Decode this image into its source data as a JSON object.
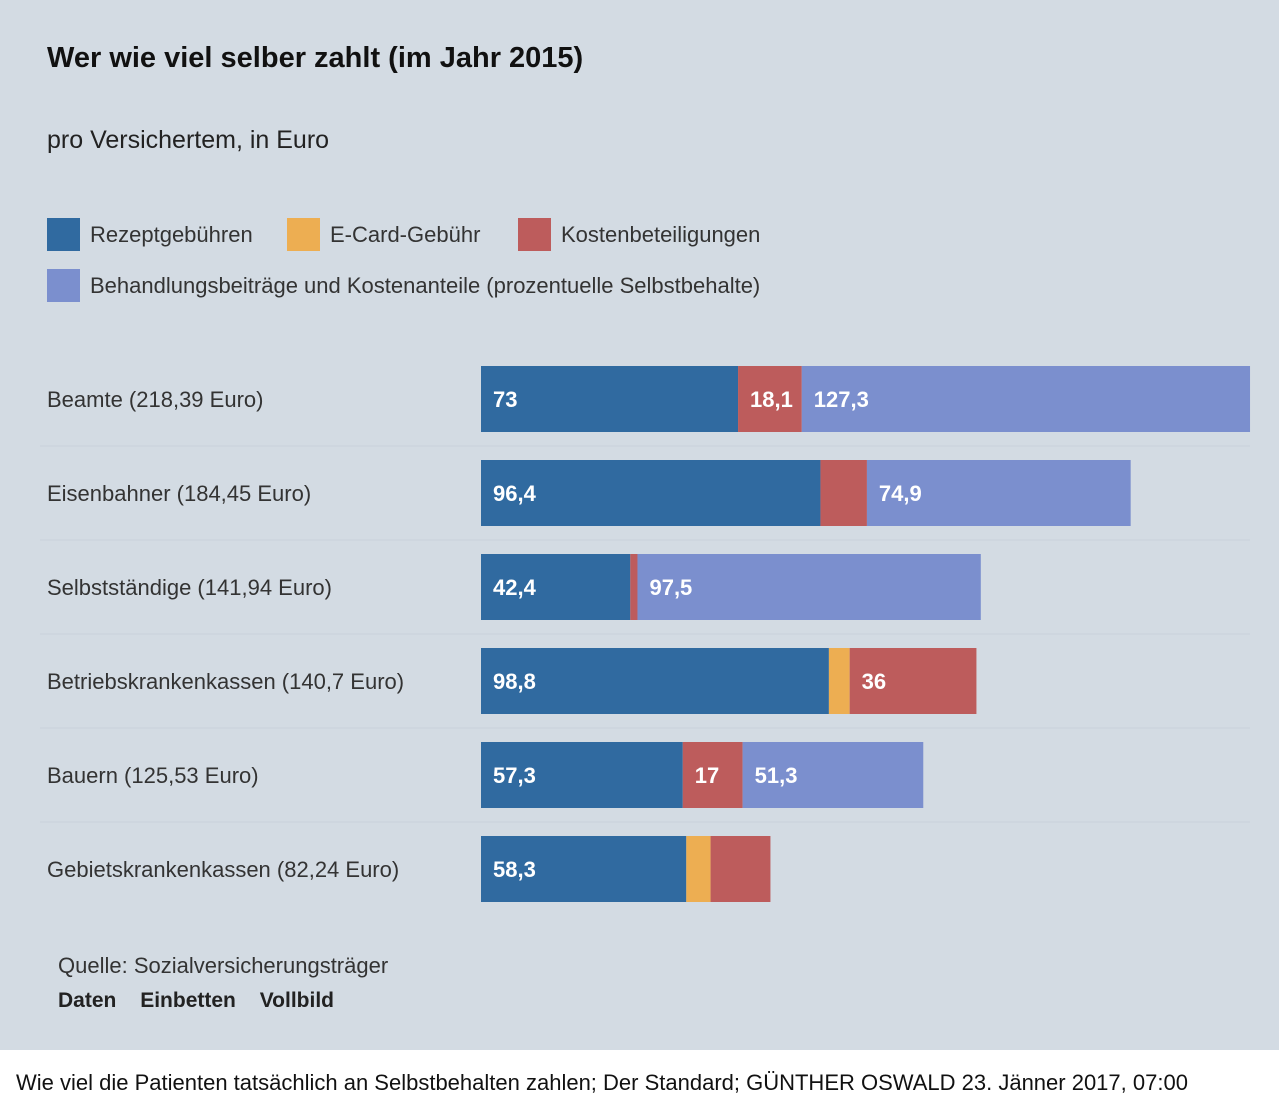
{
  "header": {
    "title": "Wer wie viel selber zahlt (im Jahr 2015)",
    "subtitle": "pro Versichertem, in Euro"
  },
  "legend": [
    {
      "label": "Rezeptgebühren",
      "color": "#306aa0"
    },
    {
      "label": "E-Card-Gebühr",
      "color": "#edae52"
    },
    {
      "label": "Kostenbeteiligungen",
      "color": "#bd5c5c"
    },
    {
      "label": "Behandlungsbeiträge und Kostenanteile (prozentuelle Selbstbehalte)",
      "color": "#7b8fce"
    }
  ],
  "chart_data": {
    "type": "bar",
    "orientation": "horizontal",
    "stacked": true,
    "categories": [
      "Beamte (218,39 Euro)",
      "Eisenbahner (184,45 Euro)",
      "Selbstständige (141,94 Euro)",
      "Betriebskrankenkassen (140,7 Euro)",
      "Bauern (125,53 Euro)",
      "Gebietskrankenkassen (82,24 Euro)"
    ],
    "series": [
      {
        "name": "Rezeptgebühren",
        "color": "#306aa0",
        "values": [
          73,
          96.4,
          42.4,
          98.8,
          57.3,
          58.3
        ],
        "labels": [
          "73",
          "96,4",
          "42,4",
          "98,8",
          "57,3",
          "58,3"
        ]
      },
      {
        "name": "E-Card-Gebühr",
        "color": "#edae52",
        "values": [
          0,
          0,
          0,
          5.9,
          0,
          6.9
        ],
        "labels": [
          "",
          "",
          "",
          "",
          "",
          ""
        ]
      },
      {
        "name": "Kostenbeteiligungen",
        "color": "#bd5c5c",
        "values": [
          18.1,
          13.2,
          2.04,
          36,
          17,
          17
        ],
        "labels": [
          "18,1",
          "",
          "",
          "36",
          "17",
          ""
        ]
      },
      {
        "name": "Behandlungsbeiträge und Kostenanteile (prozentuelle Selbstbehalte)",
        "color": "#7b8fce",
        "values": [
          127.3,
          74.9,
          97.5,
          0,
          51.3,
          0
        ],
        "labels": [
          "127,3",
          "74,9",
          "97,5",
          "",
          "51,3",
          ""
        ]
      }
    ],
    "xlim": [
      0,
      218.39
    ]
  },
  "footer": {
    "source": "Quelle: Sozialversicherungsträger",
    "links": [
      "Daten",
      "Einbetten",
      "Vollbild"
    ]
  },
  "caption": "Wie viel die Patienten tatsächlich an Selbstbehalten  zahlen; Der Standard; GÜNTHER OSWALD 23. Jänner 2017, 07:00"
}
